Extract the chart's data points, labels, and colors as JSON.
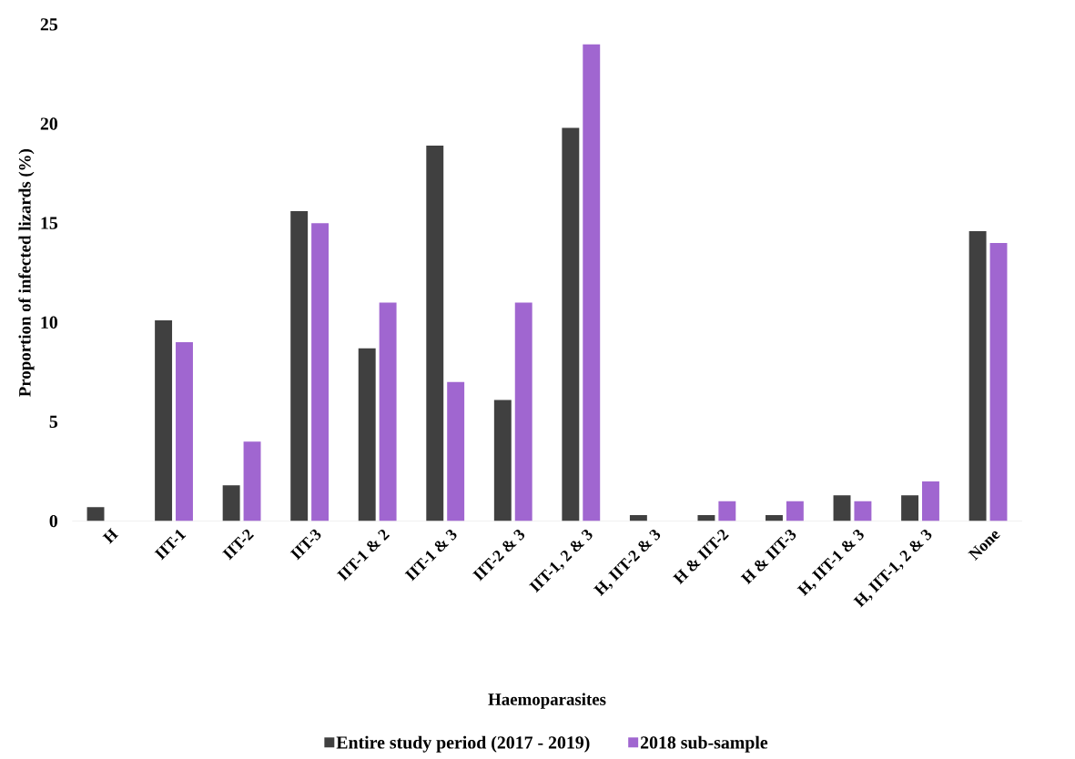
{
  "chart_data": {
    "type": "bar",
    "xlabel": "Haemoparasites",
    "ylabel": "Proportion of infected lizards (%)",
    "categories": [
      "H",
      "IIT-1",
      "IIT-2",
      "IIT-3",
      "IIT-1 & 2",
      "IIT-1 & 3",
      "IIT-2 & 3",
      "IIT-1, 2 & 3",
      "H, IIT-2 & 3",
      "H & IIT-2",
      "H & IIT-3",
      "H, IIT-1 & 3",
      "H, IIT-1, 2 & 3",
      "None"
    ],
    "series": [
      {
        "name": "Entire study period (2017 - 2019)",
        "color": "#404040",
        "values": [
          0.7,
          10.1,
          1.8,
          15.6,
          8.7,
          18.9,
          6.1,
          19.8,
          0.3,
          0.3,
          0.3,
          1.3,
          1.3,
          14.6
        ]
      },
      {
        "name": "2018 sub-sample",
        "color": "#a066d0",
        "values": [
          0,
          9,
          4,
          15,
          11,
          7,
          11,
          24,
          0,
          1,
          1,
          1,
          2,
          14
        ]
      }
    ],
    "ylim": [
      0,
      25
    ],
    "yticks": [
      0,
      5,
      10,
      15,
      20,
      25
    ],
    "legend": "bottom"
  }
}
